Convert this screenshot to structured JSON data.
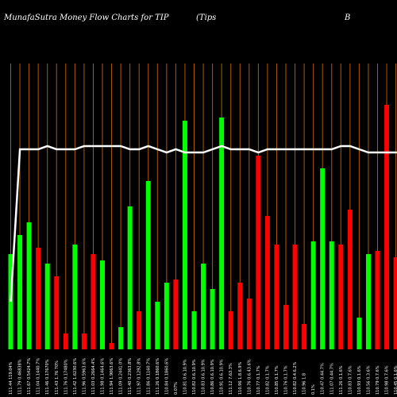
{
  "header": {
    "left": "MunafaSutra  Money Flow  Charts for TIP",
    "middle": "(Tips",
    "right": "B"
  },
  "colors": {
    "background": "#000000",
    "gridline": "#b05a00",
    "up": "#00ff00",
    "down": "#ff0000",
    "overlay_line": "#ffffff",
    "text": "#ffffff"
  },
  "chart_data": {
    "type": "bar",
    "title": "",
    "xlabel": "",
    "ylabel": "",
    "grid": "vertical",
    "ylim": [
      0,
      100
    ],
    "categories": [
      "111.44 119.04%",
      "111.79 0.46838%",
      "111.67 0.5424.7%",
      "111.04 0.1440.7%",
      "111.46 0.17670%",
      "111.43 1.76 70%",
      "111.76 0.17480%",
      "111.42 1.6230.6%",
      "111.96 0.5963.6%",
      "111.03 0.2664.4%",
      "111.98 0.1464.6%",
      "111.94 1.9063.6%",
      "111.09 0.2441.0%",
      "111.40 0.2363.8%",
      "111.97 0.1292.8%",
      "111.86 0.1160.7%",
      "111.26 0.1860.6%",
      "110.84 0.1860.6%",
      "0.07%",
      "110.81 0.6.10.9%",
      "110.82 0.6.10.9%",
      "110.83 0.6.10.9%",
      "110.86 0.6.10.9%",
      "110.91 0.6.10.9%",
      "111.12 7.63.3%",
      "110.96 1.8.6.9%",
      "110.76 0.6.43.6%",
      "110.77 0.1.7%",
      "110.82 0.1.7%",
      "110.85 0.1.7%",
      "110.76 0.1.7%",
      "110.82 0.4.6.2%",
      "110.96 1.8",
      "0.1%",
      "110.47 0.44.7%",
      "111.07 0.44.7%",
      "111.26 0.1.6%",
      "110.83 0.7.6%",
      "110.93 0.1.6%",
      "110.56 0.3.6%",
      "110.79 0.7.6%",
      "110.98 0.7.6%",
      "110.45 0.1.6%",
      "110.44 0.1.6%"
    ],
    "series": [
      {
        "values": [
          30,
          36,
          40,
          32,
          27,
          23,
          5,
          33,
          5,
          30,
          28,
          2,
          7,
          45,
          12,
          53,
          15,
          21,
          22,
          72,
          12,
          27,
          19,
          73,
          12,
          21,
          16,
          61,
          42,
          33,
          14,
          33,
          8,
          34,
          57,
          34,
          33,
          44,
          10,
          30,
          31,
          77,
          29,
          40
        ],
        "colors": [
          "#00ff00",
          "#00ff00",
          "#00ff00",
          "#ff0000",
          "#00ff00",
          "#ff0000",
          "#ff0000",
          "#00ff00",
          "#ff0000",
          "#ff0000",
          "#00ff00",
          "#ff0000",
          "#00ff00",
          "#00ff00",
          "#ff0000",
          "#00ff00",
          "#00ff00",
          "#00ff00",
          "#ff0000",
          "#00ff00",
          "#00ff00",
          "#00ff00",
          "#00ff00",
          "#00ff00",
          "#ff0000",
          "#ff0000",
          "#ff0000",
          "#ff0000",
          "#ff0000",
          "#ff0000",
          "#ff0000",
          "#ff0000",
          "#ff0000",
          "#00ff00",
          "#00ff00",
          "#00ff00",
          "#ff0000",
          "#ff0000",
          "#00ff00",
          "#00ff00",
          "#ff0000",
          "#ff0000",
          "#ff0000",
          "#ff0000"
        ]
      }
    ],
    "line": [
      15,
      63,
      63,
      63,
      64,
      63,
      63,
      63,
      64,
      64,
      64,
      64,
      64,
      63,
      63,
      64,
      63,
      62,
      63,
      62,
      62,
      62,
      63,
      64,
      63,
      63,
      63,
      62,
      63,
      63,
      63,
      63,
      63,
      63,
      63,
      63,
      64,
      64,
      63,
      62,
      62,
      62,
      62,
      62
    ]
  }
}
